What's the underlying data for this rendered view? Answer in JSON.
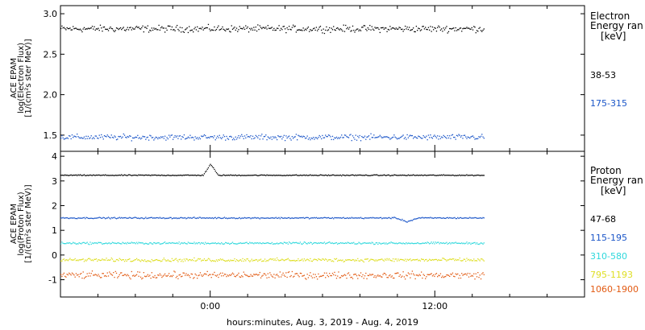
{
  "chart_data": [
    {
      "type": "scatter",
      "panel": "electron",
      "ylabel_lines": [
        "ACE EPAM",
        "log(Electron Flux)",
        "[1/(cm²s ster MeV)]"
      ],
      "ylim": [
        1.3,
        3.1
      ],
      "yticks": [
        1.5,
        2.0,
        2.5,
        3.0
      ],
      "ytick_labels": [
        "1.5",
        "2.0",
        "2.5",
        "3.0"
      ],
      "legend_title": [
        "Electron",
        "Energy ran",
        "[keV]"
      ],
      "series": [
        {
          "name": "38-53",
          "color": "#000000",
          "baseline": 2.82,
          "scatter": 0.06,
          "events": []
        },
        {
          "name": "175-315",
          "color": "#1a55c8",
          "baseline": 1.48,
          "scatter": 0.05,
          "events": []
        }
      ]
    },
    {
      "type": "scatter",
      "panel": "proton",
      "ylabel_lines": [
        "ACE EPAM",
        "log(Proton Flux)",
        "[1/(cm²s ster MeV)]"
      ],
      "ylim": [
        -1.7,
        4.2
      ],
      "yticks": [
        -1,
        0,
        1,
        2,
        3,
        4
      ],
      "ytick_labels": [
        "-1",
        "0",
        "1",
        "2",
        "3",
        "4"
      ],
      "legend_title": [
        "Proton",
        "Energy ran",
        "[keV]"
      ],
      "series": [
        {
          "name": "47-68",
          "color": "#000000",
          "baseline": 3.25,
          "scatter": 0.03,
          "events": [
            {
              "x": 0.0,
              "dy": 0.45,
              "width": 0.4
            }
          ]
        },
        {
          "name": "115-195",
          "color": "#1a55c8",
          "baseline": 1.52,
          "scatter": 0.04,
          "events": [
            {
              "x": 10.5,
              "dy": -0.15,
              "width": 0.6
            }
          ]
        },
        {
          "name": "310-580",
          "color": "#2fd8dc",
          "baseline": 0.5,
          "scatter": 0.06,
          "events": []
        },
        {
          "name": "795-1193",
          "color": "#dede22",
          "baseline": -0.18,
          "scatter": 0.1,
          "events": []
        },
        {
          "name": "1060-1900",
          "color": "#e25a12",
          "baseline": -0.8,
          "scatter": 0.2,
          "events": []
        }
      ]
    }
  ],
  "x_axis": {
    "xlim": [
      -8.0,
      20.0
    ],
    "data_end": 14.6,
    "ticks": [
      0,
      12
    ],
    "tick_labels": [
      "0:00",
      "12:00"
    ],
    "label": "hours:minutes, Aug.  3, 2019 - Aug.  4, 2019"
  }
}
